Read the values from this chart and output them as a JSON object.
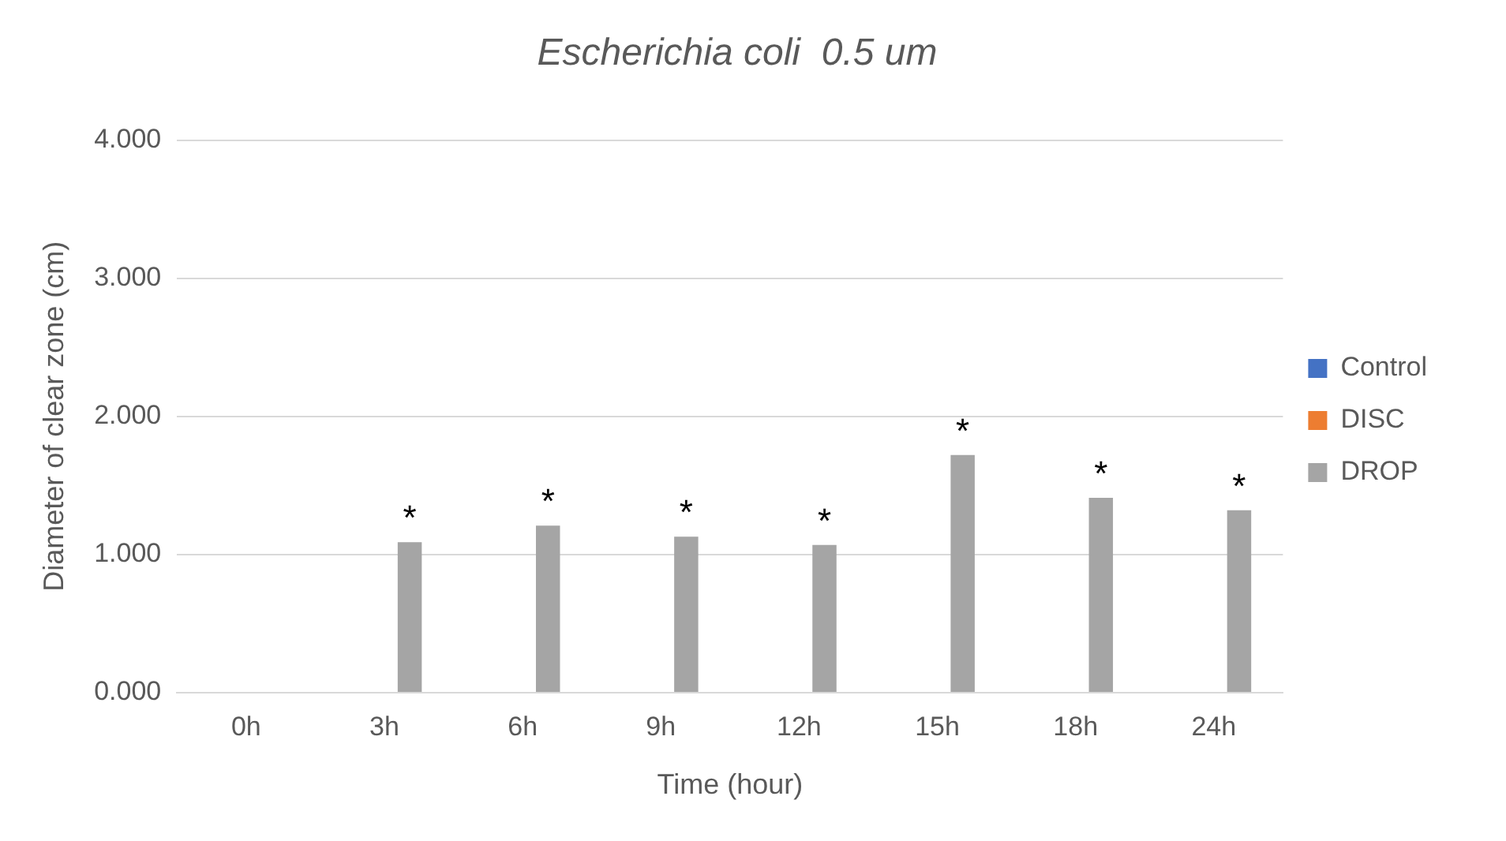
{
  "chart_data": {
    "type": "bar",
    "title": "Escherichia coli  0.5 um",
    "xlabel": "Time (hour)",
    "ylabel": "Diameter of clear zone (cm)",
    "categories": [
      "0h",
      "3h",
      "6h",
      "9h",
      "12h",
      "15h",
      "18h",
      "24h"
    ],
    "series": [
      {
        "name": "Control",
        "color": "#4472c4",
        "values": [
          0,
          0,
          0,
          0,
          0,
          0,
          0,
          0
        ]
      },
      {
        "name": "DISC",
        "color": "#ed7d31",
        "values": [
          0,
          0,
          0,
          0,
          0,
          0,
          0,
          0
        ]
      },
      {
        "name": "DROP",
        "color": "#a5a5a5",
        "values": [
          0,
          1.09,
          1.21,
          1.13,
          1.07,
          1.72,
          1.41,
          1.32
        ],
        "value_labels": [
          null,
          "*",
          "*",
          "*",
          "*",
          "*",
          "*",
          "*"
        ]
      }
    ],
    "ylim": [
      0,
      4
    ],
    "yticks": [
      {
        "value": 0,
        "label": "0.000"
      },
      {
        "value": 1,
        "label": "1.000"
      },
      {
        "value": 2,
        "label": "2.000"
      },
      {
        "value": 3,
        "label": "3.000"
      },
      {
        "value": 4,
        "label": "4.000"
      }
    ],
    "grid": "y",
    "legend": "right"
  }
}
